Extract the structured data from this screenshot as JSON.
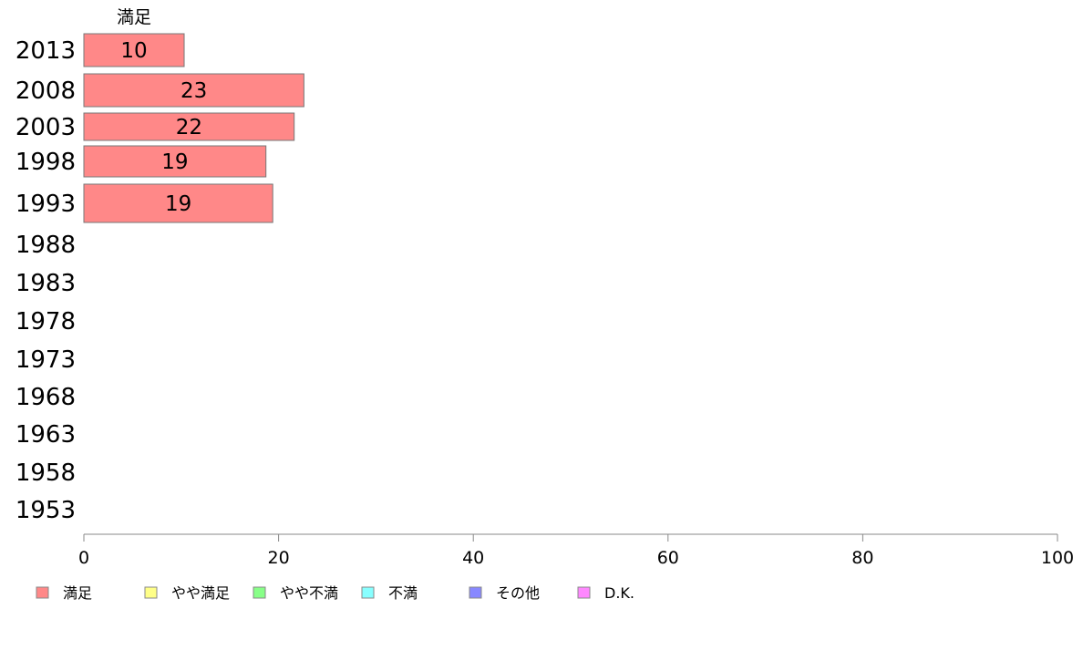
{
  "chart_data": {
    "type": "bar",
    "orientation": "horizontal",
    "stacked": true,
    "series_title": "満足",
    "categories": [
      "2013",
      "2008",
      "2003",
      "1998",
      "1993",
      "1988",
      "1983",
      "1978",
      "1973",
      "1968",
      "1963",
      "1958",
      "1953"
    ],
    "series": [
      {
        "name": "満足",
        "color": "#ff8888",
        "values": [
          10.3,
          22.6,
          21.6,
          18.7,
          19.4,
          null,
          null,
          null,
          null,
          null,
          null,
          null,
          null
        ],
        "labels": [
          "10",
          "23",
          "22",
          "19",
          "19",
          "",
          "",
          "",
          "",
          "",
          "",
          "",
          ""
        ]
      }
    ],
    "xlim": [
      0,
      100
    ],
    "xticks": [
      "0",
      "20",
      "40",
      "60",
      "80",
      "100"
    ],
    "grid": false,
    "legend_position": "bottom-left",
    "legend": [
      {
        "name": "満足",
        "color": "#ff8888"
      },
      {
        "name": "やや満足",
        "color": "#ffff88"
      },
      {
        "name": "やや不満",
        "color": "#88ff88"
      },
      {
        "name": "不満",
        "color": "#88ffff"
      },
      {
        "name": "その他",
        "color": "#8888ff"
      },
      {
        "name": "D.K.",
        "color": "#ff88ff"
      }
    ]
  }
}
